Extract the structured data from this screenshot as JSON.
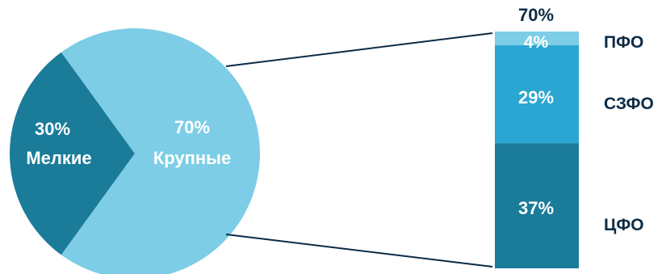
{
  "chart_data": {
    "type": "pie",
    "slices": [
      {
        "value": 30,
        "pct_label": "30%",
        "name": "Мелкие",
        "color": "#1b7c9a"
      },
      {
        "value": 70,
        "pct_label": "70%",
        "name": "Крупные",
        "color": "#7ecde6"
      }
    ],
    "breakdown": {
      "type": "bar",
      "stacked": true,
      "total_label": "70%",
      "segments": [
        {
          "region": "ЦФО",
          "value": 37,
          "pct_label": "37%",
          "color": "#1b7c9a"
        },
        {
          "region": "СЗФО",
          "value": 29,
          "pct_label": "29%",
          "color": "#29a6d1"
        },
        {
          "region": "ПФО",
          "value": 4,
          "pct_label": "4%",
          "color": "#7ecde6"
        }
      ]
    }
  }
}
